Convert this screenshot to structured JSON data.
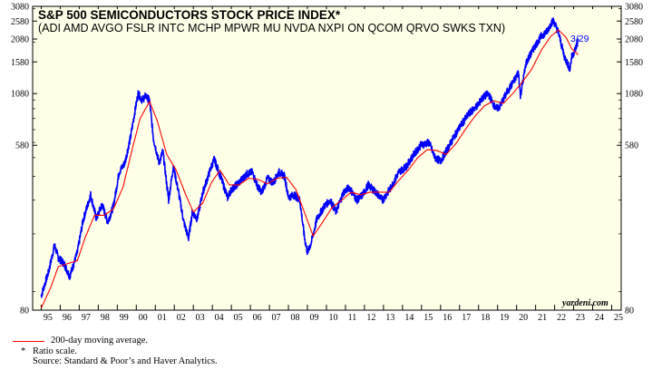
{
  "chart_data": {
    "type": "line",
    "title": "S&P 500 SEMICONDUCTORS STOCK PRICE INDEX*",
    "subtitle": "(ADI AMD AVGO FSLR INTC MCHP MPWR MU NVDA NXPI ON QCOM QRVO SWKS TXN)",
    "scale": "ratio",
    "ylim": [
      80,
      3080
    ],
    "y_ticks": [
      80,
      580,
      1080,
      1580,
      2080,
      2580,
      3080
    ],
    "x_categories": [
      "95",
      "96",
      "97",
      "98",
      "99",
      "00",
      "01",
      "02",
      "03",
      "04",
      "05",
      "06",
      "07",
      "08",
      "09",
      "10",
      "11",
      "12",
      "13",
      "14",
      "15",
      "16",
      "17",
      "18",
      "19",
      "20",
      "21",
      "22",
      "23",
      "24",
      "25"
    ],
    "series": [
      {
        "name": "S&P 500 Semiconductors Stock Price Index",
        "color": "#0000ff",
        "points": [
          [
            1995.0,
            95
          ],
          [
            1995.4,
            128
          ],
          [
            1995.7,
            175
          ],
          [
            1995.9,
            150
          ],
          [
            1996.2,
            140
          ],
          [
            1996.5,
            120
          ],
          [
            1996.9,
            160
          ],
          [
            1997.2,
            235
          ],
          [
            1997.6,
            320
          ],
          [
            1997.9,
            240
          ],
          [
            1998.2,
            285
          ],
          [
            1998.5,
            230
          ],
          [
            1998.8,
            280
          ],
          [
            1999.1,
            420
          ],
          [
            1999.4,
            470
          ],
          [
            1999.7,
            640
          ],
          [
            1999.95,
            900
          ],
          [
            2000.1,
            1080
          ],
          [
            2000.3,
            1000
          ],
          [
            2000.5,
            1050
          ],
          [
            2000.7,
            990
          ],
          [
            2000.9,
            630
          ],
          [
            2001.2,
            470
          ],
          [
            2001.4,
            540
          ],
          [
            2001.7,
            300
          ],
          [
            2001.95,
            450
          ],
          [
            2002.2,
            340
          ],
          [
            2002.5,
            230
          ],
          [
            2002.75,
            190
          ],
          [
            2002.95,
            260
          ],
          [
            2003.2,
            240
          ],
          [
            2003.5,
            330
          ],
          [
            2003.95,
            450
          ],
          [
            2004.1,
            490
          ],
          [
            2004.5,
            380
          ],
          [
            2004.8,
            310
          ],
          [
            2005.0,
            340
          ],
          [
            2005.4,
            370
          ],
          [
            2005.8,
            410
          ],
          [
            2006.1,
            420
          ],
          [
            2006.4,
            350
          ],
          [
            2006.6,
            330
          ],
          [
            2006.9,
            390
          ],
          [
            2007.2,
            370
          ],
          [
            2007.5,
            420
          ],
          [
            2007.8,
            400
          ],
          [
            2008.0,
            310
          ],
          [
            2008.3,
            320
          ],
          [
            2008.6,
            300
          ],
          [
            2008.85,
            190
          ],
          [
            2009.0,
            160
          ],
          [
            2009.2,
            180
          ],
          [
            2009.5,
            240
          ],
          [
            2009.9,
            280
          ],
          [
            2010.2,
            300
          ],
          [
            2010.5,
            260
          ],
          [
            2010.9,
            330
          ],
          [
            2011.2,
            350
          ],
          [
            2011.6,
            300
          ],
          [
            2011.9,
            320
          ],
          [
            2012.2,
            360
          ],
          [
            2012.6,
            330
          ],
          [
            2012.95,
            300
          ],
          [
            2013.4,
            350
          ],
          [
            2013.8,
            420
          ],
          [
            2014.2,
            450
          ],
          [
            2014.6,
            520
          ],
          [
            2014.95,
            580
          ],
          [
            2015.4,
            600
          ],
          [
            2015.7,
            500
          ],
          [
            2016.0,
            480
          ],
          [
            2016.3,
            540
          ],
          [
            2016.7,
            640
          ],
          [
            2017.0,
            720
          ],
          [
            2017.5,
            850
          ],
          [
            2017.95,
            940
          ],
          [
            2018.2,
            1020
          ],
          [
            2018.5,
            1080
          ],
          [
            2018.9,
            900
          ],
          [
            2019.1,
            920
          ],
          [
            2019.5,
            1100
          ],
          [
            2019.95,
            1300
          ],
          [
            2020.1,
            1400
          ],
          [
            2020.2,
            1050
          ],
          [
            2020.5,
            1560
          ],
          [
            2020.95,
            1900
          ],
          [
            2021.3,
            2150
          ],
          [
            2021.6,
            2280
          ],
          [
            2021.85,
            2550
          ],
          [
            2021.95,
            2580
          ],
          [
            2022.2,
            2250
          ],
          [
            2022.5,
            1700
          ],
          [
            2022.8,
            1450
          ],
          [
            2022.9,
            1680
          ],
          [
            2023.1,
            1850
          ],
          [
            2023.24,
            2040
          ]
        ]
      },
      {
        "name": "200-day moving average.",
        "color": "#ff0000",
        "points": [
          [
            1995.0,
            82
          ],
          [
            1995.5,
            105
          ],
          [
            1995.9,
            135
          ],
          [
            1996.4,
            140
          ],
          [
            1996.9,
            145
          ],
          [
            1997.3,
            190
          ],
          [
            1997.8,
            250
          ],
          [
            1998.3,
            250
          ],
          [
            1998.8,
            270
          ],
          [
            1999.3,
            350
          ],
          [
            1999.8,
            560
          ],
          [
            2000.2,
            800
          ],
          [
            2000.7,
            980
          ],
          [
            2001.1,
            780
          ],
          [
            2001.6,
            520
          ],
          [
            2002.1,
            430
          ],
          [
            2002.6,
            320
          ],
          [
            2003.0,
            260
          ],
          [
            2003.5,
            290
          ],
          [
            2003.95,
            370
          ],
          [
            2004.4,
            430
          ],
          [
            2004.9,
            360
          ],
          [
            2005.4,
            360
          ],
          [
            2005.9,
            390
          ],
          [
            2006.4,
            385
          ],
          [
            2006.9,
            365
          ],
          [
            2007.4,
            390
          ],
          [
            2007.9,
            395
          ],
          [
            2008.4,
            340
          ],
          [
            2008.9,
            250
          ],
          [
            2009.3,
            195
          ],
          [
            2009.8,
            230
          ],
          [
            2010.3,
            275
          ],
          [
            2010.8,
            300
          ],
          [
            2011.3,
            330
          ],
          [
            2011.8,
            320
          ],
          [
            2012.3,
            330
          ],
          [
            2012.8,
            330
          ],
          [
            2013.3,
            330
          ],
          [
            2013.8,
            380
          ],
          [
            2014.3,
            430
          ],
          [
            2014.8,
            500
          ],
          [
            2015.3,
            550
          ],
          [
            2015.8,
            545
          ],
          [
            2016.3,
            520
          ],
          [
            2016.8,
            590
          ],
          [
            2017.3,
            700
          ],
          [
            2017.8,
            820
          ],
          [
            2018.3,
            930
          ],
          [
            2018.8,
            990
          ],
          [
            2019.3,
            960
          ],
          [
            2019.8,
            1080
          ],
          [
            2020.3,
            1240
          ],
          [
            2020.8,
            1450
          ],
          [
            2021.3,
            1820
          ],
          [
            2021.8,
            2150
          ],
          [
            2022.2,
            2320
          ],
          [
            2022.6,
            2120
          ],
          [
            2022.9,
            1850
          ],
          [
            2023.24,
            1720
          ]
        ]
      }
    ],
    "annotation": "3/29",
    "credit": "yardeni.com",
    "legend": "200-day moving average.",
    "footnote_marker": "*",
    "footnote": "Ratio scale.",
    "source": "Source: Standard & Poor’s and Haver Analytics."
  }
}
